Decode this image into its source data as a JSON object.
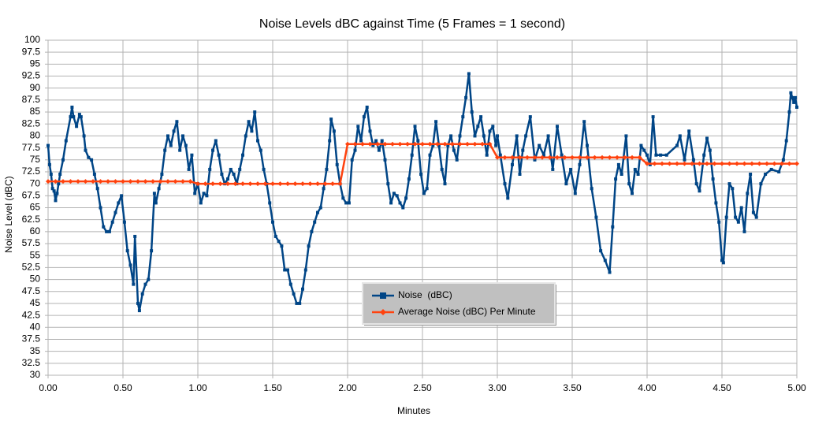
{
  "chart_data": {
    "type": "line",
    "title": "Noise Levels dBC against Time (5 Frames = 1 second)",
    "x_label": "Minutes",
    "y_label": "Noise Level (dBC)",
    "xlim": [
      0,
      5
    ],
    "ylim": [
      30,
      100
    ],
    "xticks": [
      {
        "value": 0,
        "label": "0.00"
      },
      {
        "value": 0.5,
        "label": "0.50"
      },
      {
        "value": 1,
        "label": "1.00"
      },
      {
        "value": 1.5,
        "label": "1.50"
      },
      {
        "value": 2,
        "label": "2.00"
      },
      {
        "value": 2.5,
        "label": "2.50"
      },
      {
        "value": 3,
        "label": "3.00"
      },
      {
        "value": 3.5,
        "label": "3.50"
      },
      {
        "value": 4,
        "label": "4.00"
      },
      {
        "value": 4.5,
        "label": "4.50"
      },
      {
        "value": 5,
        "label": "5.00"
      }
    ],
    "yticks": [
      30,
      32.5,
      35,
      37.5,
      40,
      42.5,
      45,
      47.5,
      50,
      52.5,
      55,
      57.5,
      60,
      62.5,
      65,
      67.5,
      70,
      72.5,
      75,
      77.5,
      80,
      82.5,
      85,
      87.5,
      90,
      92.5,
      95,
      97.5,
      100
    ],
    "grid": true,
    "legend": "center",
    "series": [
      {
        "name": "Noise  (dBC)",
        "color": "#004586",
        "marker": "square",
        "x": [
          0,
          0.01,
          0.02,
          0.03,
          0.04,
          0.05,
          0.06,
          0.07,
          0.08,
          0.1,
          0.12,
          0.15,
          0.16,
          0.17,
          0.19,
          0.21,
          0.22,
          0.24,
          0.25,
          0.27,
          0.29,
          0.31,
          0.33,
          0.35,
          0.37,
          0.39,
          0.41,
          0.43,
          0.45,
          0.47,
          0.49,
          0.51,
          0.53,
          0.55,
          0.57,
          0.58,
          0.6,
          0.61,
          0.63,
          0.65,
          0.67,
          0.69,
          0.71,
          0.72,
          0.74,
          0.76,
          0.78,
          0.8,
          0.82,
          0.84,
          0.86,
          0.88,
          0.9,
          0.92,
          0.94,
          0.96,
          0.98,
          1,
          1.02,
          1.04,
          1.06,
          1.08,
          1.1,
          1.12,
          1.14,
          1.16,
          1.18,
          1.2,
          1.22,
          1.24,
          1.26,
          1.28,
          1.3,
          1.32,
          1.34,
          1.36,
          1.38,
          1.4,
          1.42,
          1.44,
          1.46,
          1.48,
          1.5,
          1.52,
          1.54,
          1.56,
          1.58,
          1.6,
          1.62,
          1.64,
          1.66,
          1.68,
          1.7,
          1.72,
          1.74,
          1.76,
          1.78,
          1.8,
          1.82,
          1.84,
          1.86,
          1.88,
          1.89,
          1.91,
          1.93,
          1.95,
          1.97,
          1.99,
          2.01,
          2.03,
          2.05,
          2.07,
          2.09,
          2.11,
          2.13,
          2.15,
          2.17,
          2.19,
          2.21,
          2.23,
          2.25,
          2.27,
          2.29,
          2.31,
          2.33,
          2.35,
          2.37,
          2.39,
          2.41,
          2.43,
          2.45,
          2.47,
          2.49,
          2.51,
          2.53,
          2.55,
          2.57,
          2.59,
          2.61,
          2.63,
          2.65,
          2.67,
          2.69,
          2.71,
          2.73,
          2.75,
          2.77,
          2.79,
          2.81,
          2.83,
          2.85,
          2.87,
          2.89,
          2.91,
          2.93,
          2.95,
          2.97,
          2.99,
          3,
          3.02,
          3.05,
          3.07,
          3.1,
          3.13,
          3.15,
          3.17,
          3.19,
          3.22,
          3.25,
          3.28,
          3.31,
          3.34,
          3.37,
          3.4,
          3.43,
          3.46,
          3.49,
          3.52,
          3.55,
          3.58,
          3.6,
          3.63,
          3.66,
          3.69,
          3.72,
          3.75,
          3.77,
          3.79,
          3.81,
          3.83,
          3.86,
          3.88,
          3.9,
          3.92,
          3.94,
          3.96,
          3.98,
          4,
          4.02,
          4.04,
          4.06,
          4.09,
          4.13,
          4.2,
          4.22,
          4.25,
          4.28,
          4.31,
          4.33,
          4.35,
          4.38,
          4.4,
          4.42,
          4.44,
          4.46,
          4.48,
          4.5,
          4.51,
          4.53,
          4.55,
          4.57,
          4.59,
          4.61,
          4.63,
          4.65,
          4.67,
          4.69,
          4.71,
          4.73,
          4.76,
          4.79,
          4.83,
          4.88,
          4.91,
          4.93,
          4.95,
          4.96,
          4.97,
          4.98,
          4.99,
          5
        ],
        "values": [
          78,
          74,
          72,
          69,
          68.5,
          66.5,
          68,
          70,
          72,
          75,
          79,
          84,
          86,
          84,
          82,
          84.5,
          84,
          80,
          77,
          75.5,
          75,
          72,
          69,
          65,
          61,
          60,
          60,
          62,
          64,
          66,
          67.5,
          62,
          56,
          53,
          49,
          59,
          45,
          43.5,
          47,
          49,
          50,
          56,
          68,
          66,
          69,
          72,
          77,
          80,
          78,
          81,
          83,
          77,
          80,
          78,
          73,
          76,
          68,
          70,
          66,
          68,
          67.5,
          73,
          77,
          79,
          76,
          72,
          70,
          71,
          73,
          72,
          70,
          73,
          76,
          80,
          83,
          81,
          85,
          79,
          77,
          73,
          70,
          66,
          62,
          59,
          58,
          57,
          52,
          52,
          49,
          47,
          45,
          45,
          48,
          52,
          57,
          60,
          62,
          64,
          65,
          69,
          73,
          79,
          83.5,
          81,
          74,
          70,
          67,
          66,
          66,
          75,
          77,
          82,
          79,
          84,
          86,
          81,
          78,
          79,
          77,
          79,
          75,
          70,
          66,
          68,
          67.5,
          66,
          65,
          67,
          71,
          76,
          82,
          79,
          72,
          68,
          69,
          76,
          78,
          83,
          78,
          73,
          70,
          78,
          80,
          77,
          75,
          80,
          84,
          88,
          93,
          85,
          80,
          82,
          84,
          80,
          76,
          81,
          82,
          78,
          80,
          76,
          70,
          67,
          74,
          80,
          72,
          77,
          80,
          84,
          75,
          78,
          76,
          80,
          73,
          82,
          76,
          70,
          73,
          68,
          74,
          83,
          78,
          69,
          63,
          56,
          54,
          51.5,
          61,
          71,
          74,
          72,
          80,
          70,
          68,
          73,
          72,
          78,
          77,
          76,
          74,
          84,
          76,
          76,
          76,
          78,
          80,
          75,
          81,
          75,
          70,
          68.5,
          76,
          79.5,
          77,
          71,
          66,
          62,
          54,
          53.5,
          63,
          70,
          69,
          63,
          62,
          65,
          60,
          68,
          72,
          64,
          63,
          70,
          72,
          73,
          72.5,
          75,
          79,
          85,
          89,
          88,
          87,
          88,
          86
        ]
      },
      {
        "name": "Average Noise (dBC) Per Minute",
        "color": "#ff420e",
        "marker": "diamond",
        "x": [
          0,
          0.05,
          0.1,
          0.15,
          0.2,
          0.25,
          0.3,
          0.35,
          0.4,
          0.45,
          0.5,
          0.55,
          0.6,
          0.65,
          0.7,
          0.75,
          0.8,
          0.85,
          0.9,
          0.95,
          1,
          1.05,
          1.1,
          1.15,
          1.2,
          1.25,
          1.3,
          1.35,
          1.4,
          1.45,
          1.5,
          1.55,
          1.6,
          1.65,
          1.7,
          1.75,
          1.8,
          1.85,
          1.9,
          1.95,
          2,
          2.05,
          2.1,
          2.15,
          2.2,
          2.25,
          2.3,
          2.35,
          2.4,
          2.45,
          2.5,
          2.55,
          2.6,
          2.65,
          2.7,
          2.75,
          2.8,
          2.85,
          2.9,
          2.95,
          3,
          3.05,
          3.1,
          3.15,
          3.2,
          3.25,
          3.3,
          3.35,
          3.4,
          3.45,
          3.5,
          3.55,
          3.6,
          3.65,
          3.7,
          3.75,
          3.8,
          3.85,
          3.9,
          3.95,
          4,
          4.05,
          4.1,
          4.15,
          4.2,
          4.25,
          4.3,
          4.35,
          4.4,
          4.45,
          4.5,
          4.55,
          4.6,
          4.65,
          4.7,
          4.75,
          4.8,
          4.85,
          4.9,
          4.95,
          5
        ],
        "values": [
          70.5,
          70.5,
          70.5,
          70.5,
          70.5,
          70.5,
          70.5,
          70.5,
          70.5,
          70.5,
          70.5,
          70.5,
          70.5,
          70.5,
          70.5,
          70.5,
          70.5,
          70.5,
          70.5,
          70.5,
          70,
          70,
          70,
          70,
          70,
          70,
          70,
          70,
          70,
          70,
          70,
          70,
          70,
          70,
          70,
          70,
          70,
          70,
          70,
          70,
          78.3,
          78.3,
          78.3,
          78.3,
          78.3,
          78.3,
          78.3,
          78.3,
          78.3,
          78.3,
          78.3,
          78.3,
          78.3,
          78.3,
          78.3,
          78.3,
          78.3,
          78.3,
          78.3,
          78.3,
          75.5,
          75.5,
          75.5,
          75.5,
          75.5,
          75.5,
          75.5,
          75.5,
          75.5,
          75.5,
          75.5,
          75.5,
          75.5,
          75.5,
          75.5,
          75.5,
          75.5,
          75.5,
          75.5,
          75.5,
          74.2,
          74.2,
          74.2,
          74.2,
          74.2,
          74.2,
          74.2,
          74.2,
          74.2,
          74.2,
          74.2,
          74.2,
          74.2,
          74.2,
          74.2,
          74.2,
          74.2,
          74.2,
          74.2,
          74.2,
          74.2
        ]
      }
    ]
  }
}
